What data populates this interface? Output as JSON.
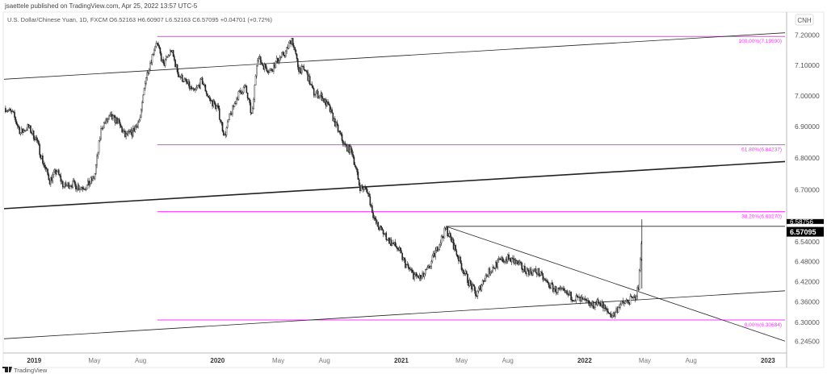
{
  "header": {
    "published": "jsaettele published on TradingView.com, Apr 25, 2022 13:57 UTC-5",
    "legend": "U.S. Dollar/Chinese Yuan, 1D, FXCM  O6.52163  H6.60907  L6.52163  C6.57095  +0.04701 (+0.72%)"
  },
  "footer": {
    "brand": "TradingView",
    "logo_icon": "tradingview-logo-icon"
  },
  "colors": {
    "fib": "#ff33ff",
    "candle": "#222222",
    "trendline": "#222222",
    "last_price_bg": "#000000"
  },
  "chart_data": {
    "type": "candlestick",
    "symbol": "USD/CNH",
    "currency_label": "CNH",
    "scale": "log",
    "grid": false,
    "xlim": [
      "2018-11-02",
      "2023-02-04"
    ],
    "ylim": [
      6.213,
      7.237
    ],
    "x_ticks": [
      {
        "label": "2019",
        "date": "2019-01-01",
        "major": true
      },
      {
        "label": "May",
        "date": "2019-05-01"
      },
      {
        "label": "Aug",
        "date": "2019-08-01"
      },
      {
        "label": "2020",
        "date": "2020-01-01",
        "major": true
      },
      {
        "label": "May",
        "date": "2020-05-01"
      },
      {
        "label": "Aug",
        "date": "2020-08-01"
      },
      {
        "label": "2021",
        "date": "2021-01-01",
        "major": true
      },
      {
        "label": "May",
        "date": "2021-05-01"
      },
      {
        "label": "Aug",
        "date": "2021-08-01"
      },
      {
        "label": "2022",
        "date": "2022-01-01",
        "major": true
      },
      {
        "label": "May",
        "date": "2022-05-01"
      },
      {
        "label": "Aug",
        "date": "2022-08-01"
      },
      {
        "label": "2023",
        "date": "2023-01-01",
        "major": true
      }
    ],
    "y_ticks": [
      {
        "label": "7.20000",
        "value": 7.2
      },
      {
        "label": "7.10000",
        "value": 7.1
      },
      {
        "label": "7.00000",
        "value": 7.0
      },
      {
        "label": "6.90000",
        "value": 6.9
      },
      {
        "label": "6.80000",
        "value": 6.8
      },
      {
        "label": "6.70000",
        "value": 6.7
      },
      {
        "label": "6.54000",
        "value": 6.54
      },
      {
        "label": "6.48000",
        "value": 6.48
      },
      {
        "label": "6.42000",
        "value": 6.42
      },
      {
        "label": "6.36000",
        "value": 6.36
      },
      {
        "label": "6.30000",
        "value": 6.3
      },
      {
        "label": "6.24500",
        "value": 6.245
      }
    ],
    "price_labels": [
      {
        "label": "6.58756",
        "value": 6.58756,
        "style": "partial"
      },
      {
        "label": "6.57095",
        "value": 6.57095,
        "style": "last"
      }
    ],
    "fib_levels": [
      {
        "label": "100.00%(7.19590)",
        "value": 7.1959
      },
      {
        "label": "61.80%(6.84237)",
        "value": 6.84237
      },
      {
        "label": "38.20%(6.63270)",
        "value": 6.6327
      },
      {
        "label": "0.00%(6.30684)",
        "value": 6.30684
      }
    ],
    "fib_start": "2019-09-03",
    "trendlines": [
      {
        "from": [
          "2018-11-02",
          7.054
        ],
        "to": [
          "2023-02-04",
          7.208
        ],
        "weight": "thin"
      },
      {
        "from": [
          "2018-11-02",
          6.642
        ],
        "to": [
          "2023-02-04",
          6.789
        ],
        "weight": "thick"
      },
      {
        "from": [
          "2018-11-02",
          6.252
        ],
        "to": [
          "2023-02-04",
          6.393
        ],
        "weight": "thin"
      },
      {
        "from": [
          "2021-03-31",
          6.58756
        ],
        "to": [
          "2023-02-04",
          6.245
        ],
        "weight": "thin"
      },
      {
        "from": [
          "2021-03-31",
          6.58756
        ],
        "to": [
          "2023-02-04",
          6.58756
        ],
        "weight": "thin"
      }
    ],
    "series": [
      [
        "2018-11-05",
        6.96
      ],
      [
        "2018-11-20",
        6.94
      ],
      [
        "2018-12-05",
        6.88
      ],
      [
        "2018-12-20",
        6.9
      ],
      [
        "2019-01-05",
        6.86
      ],
      [
        "2019-01-20",
        6.78
      ],
      [
        "2019-02-01",
        6.73
      ],
      [
        "2019-02-15",
        6.76
      ],
      [
        "2019-03-01",
        6.71
      ],
      [
        "2019-03-15",
        6.72
      ],
      [
        "2019-04-01",
        6.71
      ],
      [
        "2019-04-15",
        6.71
      ],
      [
        "2019-05-01",
        6.74
      ],
      [
        "2019-05-15",
        6.9
      ],
      [
        "2019-06-01",
        6.93
      ],
      [
        "2019-06-15",
        6.92
      ],
      [
        "2019-07-01",
        6.87
      ],
      [
        "2019-07-15",
        6.88
      ],
      [
        "2019-08-01",
        6.93
      ],
      [
        "2019-08-10",
        7.05
      ],
      [
        "2019-09-01",
        7.18
      ],
      [
        "2019-09-15",
        7.1
      ],
      [
        "2019-10-01",
        7.15
      ],
      [
        "2019-10-15",
        7.07
      ],
      [
        "2019-11-01",
        7.04
      ],
      [
        "2019-11-15",
        7.01
      ],
      [
        "2019-12-01",
        7.05
      ],
      [
        "2019-12-15",
        6.99
      ],
      [
        "2020-01-01",
        6.96
      ],
      [
        "2020-01-15",
        6.87
      ],
      [
        "2020-01-25",
        6.93
      ],
      [
        "2020-02-10",
        7.0
      ],
      [
        "2020-02-25",
        7.03
      ],
      [
        "2020-03-10",
        6.93
      ],
      [
        "2020-03-20",
        7.13
      ],
      [
        "2020-04-01",
        7.1
      ],
      [
        "2020-04-15",
        7.08
      ],
      [
        "2020-05-01",
        7.12
      ],
      [
        "2020-05-15",
        7.14
      ],
      [
        "2020-05-28",
        7.19
      ],
      [
        "2020-06-10",
        7.09
      ],
      [
        "2020-06-25",
        7.08
      ],
      [
        "2020-07-10",
        7.01
      ],
      [
        "2020-07-25",
        7.0
      ],
      [
        "2020-08-10",
        6.96
      ],
      [
        "2020-08-25",
        6.9
      ],
      [
        "2020-09-10",
        6.84
      ],
      [
        "2020-09-25",
        6.82
      ],
      [
        "2020-10-10",
        6.71
      ],
      [
        "2020-10-25",
        6.7
      ],
      [
        "2020-11-10",
        6.6
      ],
      [
        "2020-11-25",
        6.57
      ],
      [
        "2020-12-10",
        6.54
      ],
      [
        "2020-12-25",
        6.52
      ],
      [
        "2021-01-10",
        6.47
      ],
      [
        "2021-01-25",
        6.44
      ],
      [
        "2021-02-10",
        6.43
      ],
      [
        "2021-02-25",
        6.46
      ],
      [
        "2021-03-10",
        6.51
      ],
      [
        "2021-03-31",
        6.58
      ],
      [
        "2021-04-15",
        6.53
      ],
      [
        "2021-04-30",
        6.47
      ],
      [
        "2021-05-15",
        6.42
      ],
      [
        "2021-05-31",
        6.38
      ],
      [
        "2021-06-15",
        6.43
      ],
      [
        "2021-06-30",
        6.46
      ],
      [
        "2021-07-15",
        6.48
      ],
      [
        "2021-07-31",
        6.49
      ],
      [
        "2021-08-15",
        6.48
      ],
      [
        "2021-08-31",
        6.46
      ],
      [
        "2021-09-15",
        6.45
      ],
      [
        "2021-09-30",
        6.45
      ],
      [
        "2021-10-15",
        6.42
      ],
      [
        "2021-10-31",
        6.4
      ],
      [
        "2021-11-15",
        6.39
      ],
      [
        "2021-11-30",
        6.38
      ],
      [
        "2021-12-15",
        6.37
      ],
      [
        "2021-12-31",
        6.36
      ],
      [
        "2022-01-15",
        6.35
      ],
      [
        "2022-01-31",
        6.36
      ],
      [
        "2022-02-15",
        6.33
      ],
      [
        "2022-02-28",
        6.32
      ],
      [
        "2022-03-10",
        6.35
      ],
      [
        "2022-03-25",
        6.36
      ],
      [
        "2022-04-10",
        6.37
      ],
      [
        "2022-04-18",
        6.4
      ],
      [
        "2022-04-25",
        6.57
      ]
    ]
  }
}
